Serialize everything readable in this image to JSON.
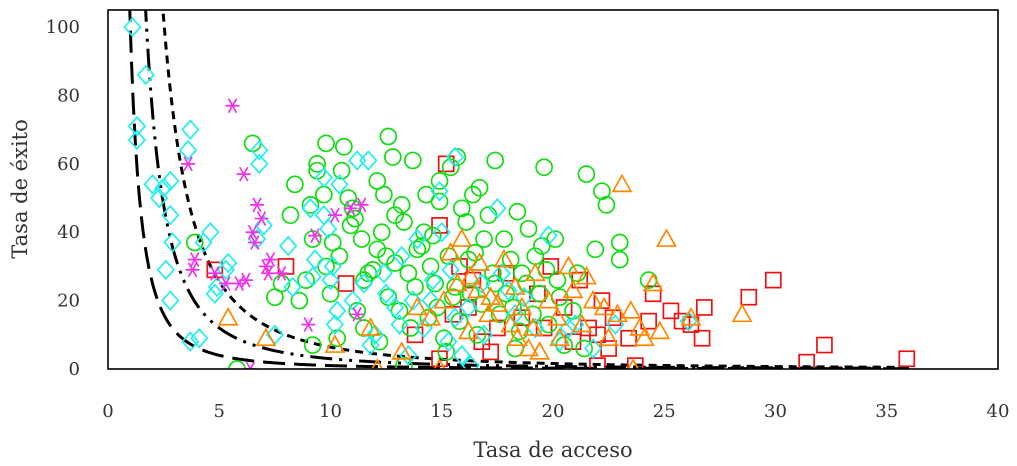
{
  "chart_data": {
    "type": "scatter",
    "title": "",
    "xlabel": "Tasa de acceso",
    "ylabel": "Tasa de éxito",
    "xlim": [
      0,
      40
    ],
    "ylim": [
      0,
      105
    ],
    "xticks": [
      0,
      5,
      10,
      15,
      20,
      25,
      30,
      35,
      40
    ],
    "yticks": [
      0,
      20,
      40,
      60,
      80,
      100
    ],
    "grid": false,
    "legend": "none",
    "curves": [
      {
        "style": "long-dash",
        "k": 100,
        "color": "#000000"
      },
      {
        "style": "dash-dot-dot",
        "k": 300,
        "color": "#000000"
      },
      {
        "style": "short-dash",
        "k": 640,
        "color": "#000000"
      }
    ],
    "series": [
      {
        "marker": "square",
        "color": "#ee1111",
        "points": [
          [
            4.8,
            29
          ],
          [
            8,
            30
          ],
          [
            10.7,
            25
          ],
          [
            15.2,
            60
          ],
          [
            14.9,
            42
          ],
          [
            16.2,
            18
          ],
          [
            15.8,
            30
          ],
          [
            16.8,
            8
          ],
          [
            17.2,
            5
          ],
          [
            19.3,
            22
          ],
          [
            20.5,
            18
          ],
          [
            21.6,
            12
          ],
          [
            22.2,
            20
          ],
          [
            22,
            10
          ],
          [
            22.5,
            6
          ],
          [
            22,
            1
          ],
          [
            23.7,
            1
          ],
          [
            24.5,
            22
          ],
          [
            25.3,
            17
          ],
          [
            25.8,
            14
          ],
          [
            26.8,
            18
          ],
          [
            26.7,
            9
          ],
          [
            28.8,
            21
          ],
          [
            29.9,
            26
          ],
          [
            31.4,
            2
          ],
          [
            32.2,
            7
          ],
          [
            35.9,
            3
          ],
          [
            17.9,
            28
          ],
          [
            18.6,
            15
          ],
          [
            19.9,
            30
          ],
          [
            20.9,
            8
          ],
          [
            14.9,
            3
          ],
          [
            23.4,
            9
          ],
          [
            24.3,
            14
          ],
          [
            26.2,
            13
          ],
          [
            21.2,
            26
          ],
          [
            19.6,
            12
          ],
          [
            17.5,
            12
          ],
          [
            15.5,
            16
          ],
          [
            16.4,
            26
          ],
          [
            13.8,
            10
          ],
          [
            22.7,
            15
          ]
        ]
      },
      {
        "marker": "circle",
        "color": "#11dd11",
        "points": [
          [
            3.9,
            37
          ],
          [
            5.8,
            0
          ],
          [
            6.5,
            66
          ],
          [
            7.5,
            21
          ],
          [
            8.2,
            45
          ],
          [
            8.4,
            54
          ],
          [
            9.2,
            38
          ],
          [
            9.4,
            58
          ],
          [
            9.7,
            51
          ],
          [
            9.8,
            66
          ],
          [
            10.1,
            37
          ],
          [
            10.6,
            65
          ],
          [
            11,
            47
          ],
          [
            11.1,
            44
          ],
          [
            11.5,
            26
          ],
          [
            12.3,
            40
          ],
          [
            12.6,
            68
          ],
          [
            12.8,
            62
          ],
          [
            13.3,
            43
          ],
          [
            13.7,
            61
          ],
          [
            14.3,
            51
          ],
          [
            14.9,
            49
          ],
          [
            15.4,
            59
          ],
          [
            15.7,
            62
          ],
          [
            16.4,
            51
          ],
          [
            16.7,
            53
          ],
          [
            17.4,
            61
          ],
          [
            18.4,
            46
          ],
          [
            18.9,
            41
          ],
          [
            19.6,
            59
          ],
          [
            20.1,
            38
          ],
          [
            21.5,
            57
          ],
          [
            21.9,
            35
          ],
          [
            22.2,
            52
          ],
          [
            22.4,
            48
          ],
          [
            23,
            37
          ],
          [
            23,
            32
          ],
          [
            24.3,
            26
          ],
          [
            8.6,
            20
          ],
          [
            9.2,
            7
          ],
          [
            10.3,
            9
          ],
          [
            11.5,
            12
          ],
          [
            12.1,
            35
          ],
          [
            12.9,
            31
          ],
          [
            13.5,
            28
          ],
          [
            13.3,
            1
          ],
          [
            14.1,
            36
          ],
          [
            14.7,
            25
          ],
          [
            14.8,
            18
          ],
          [
            15.1,
            9
          ],
          [
            15.5,
            21
          ],
          [
            16.2,
            32
          ],
          [
            16.9,
            38
          ],
          [
            17.3,
            28
          ],
          [
            17.9,
            22
          ],
          [
            18.2,
            18
          ],
          [
            18.8,
            25
          ],
          [
            19.2,
            33
          ],
          [
            19.7,
            29
          ],
          [
            20.3,
            21
          ],
          [
            20.9,
            17
          ],
          [
            21.1,
            28
          ],
          [
            9.8,
            30
          ],
          [
            10.4,
            33
          ],
          [
            11.2,
            17
          ],
          [
            12.6,
            21
          ],
          [
            13.1,
            17
          ],
          [
            13.8,
            24
          ],
          [
            14.4,
            15
          ],
          [
            15.8,
            14
          ],
          [
            16.6,
            10
          ],
          [
            17.6,
            16
          ],
          [
            18.5,
            11
          ],
          [
            19.8,
            13
          ],
          [
            20.5,
            7
          ],
          [
            21.4,
            6
          ],
          [
            7.8,
            25
          ],
          [
            8.9,
            26
          ],
          [
            10,
            22
          ],
          [
            11.7,
            28
          ],
          [
            12.9,
            45
          ],
          [
            14.2,
            40
          ],
          [
            15.3,
            33
          ],
          [
            16.1,
            43
          ],
          [
            17.1,
            45
          ],
          [
            18.1,
            32
          ],
          [
            19.5,
            36
          ],
          [
            20.2,
            26
          ],
          [
            12.2,
            8
          ],
          [
            13.6,
            12
          ],
          [
            15.2,
            5
          ],
          [
            16.8,
            19
          ],
          [
            18.3,
            6
          ],
          [
            19.1,
            16
          ],
          [
            9.1,
            48
          ],
          [
            10.8,
            50
          ],
          [
            12.4,
            51
          ],
          [
            13.2,
            48
          ],
          [
            14.6,
            39
          ],
          [
            15.9,
            47
          ],
          [
            16.5,
            34
          ],
          [
            17.8,
            38
          ],
          [
            12.5,
            33
          ],
          [
            11.9,
            29
          ],
          [
            14.5,
            30
          ],
          [
            15.6,
            24
          ],
          [
            16.3,
            22
          ],
          [
            17.4,
            25
          ],
          [
            18.6,
            28
          ],
          [
            19.4,
            22
          ],
          [
            11.4,
            38
          ],
          [
            13.9,
            35
          ],
          [
            10.9,
            42
          ],
          [
            9.4,
            60
          ],
          [
            10.5,
            58
          ],
          [
            12.1,
            55
          ],
          [
            14.9,
            55
          ]
        ]
      },
      {
        "marker": "diamond",
        "color": "#22eeee",
        "points": [
          [
            1.1,
            100
          ],
          [
            1.7,
            86
          ],
          [
            1.3,
            71
          ],
          [
            1.3,
            67
          ],
          [
            2,
            54
          ],
          [
            2.5,
            53
          ],
          [
            2.8,
            55
          ],
          [
            2.3,
            50
          ],
          [
            2.8,
            45
          ],
          [
            2.9,
            37
          ],
          [
            2.6,
            29
          ],
          [
            2.8,
            20
          ],
          [
            3.6,
            64
          ],
          [
            3.7,
            70
          ],
          [
            3.7,
            8
          ],
          [
            4.1,
            9
          ],
          [
            4.6,
            40
          ],
          [
            4.3,
            37
          ],
          [
            4.9,
            24
          ],
          [
            5.3,
            29
          ],
          [
            5.4,
            31
          ],
          [
            4.8,
            22
          ],
          [
            6.8,
            60
          ],
          [
            6.8,
            64
          ],
          [
            6.7,
            38
          ],
          [
            7,
            42
          ],
          [
            7.5,
            10
          ],
          [
            8.1,
            36
          ],
          [
            8.3,
            24
          ],
          [
            9.1,
            47
          ],
          [
            9.2,
            27
          ],
          [
            9.7,
            56
          ],
          [
            9.7,
            45
          ],
          [
            9.9,
            41
          ],
          [
            10,
            26
          ],
          [
            10.1,
            30
          ],
          [
            10.3,
            17
          ],
          [
            10.4,
            54
          ],
          [
            11.2,
            61
          ],
          [
            11.7,
            61
          ],
          [
            11.5,
            25
          ],
          [
            12,
            10
          ],
          [
            12.5,
            22
          ],
          [
            12.9,
            18
          ],
          [
            13.2,
            33
          ],
          [
            13.5,
            4
          ],
          [
            13.9,
            38
          ],
          [
            14.5,
            20
          ],
          [
            14.9,
            52
          ],
          [
            15.6,
            62
          ],
          [
            15.4,
            29
          ],
          [
            15.6,
            15
          ],
          [
            15.9,
            4
          ],
          [
            16.3,
            1
          ],
          [
            16.8,
            25
          ],
          [
            17.5,
            47
          ],
          [
            18,
            23
          ],
          [
            18.3,
            16
          ],
          [
            19.8,
            39
          ],
          [
            20.3,
            8
          ],
          [
            21,
            13
          ],
          [
            21.8,
            6
          ],
          [
            22.8,
            13
          ],
          [
            26.1,
            14
          ],
          [
            9.3,
            32
          ],
          [
            10.2,
            13
          ],
          [
            11,
            20
          ],
          [
            12.4,
            28
          ],
          [
            13.7,
            20
          ],
          [
            14.2,
            12
          ],
          [
            15,
            40
          ],
          [
            16.2,
            18
          ],
          [
            16.9,
            10
          ],
          [
            17.7,
            28
          ],
          [
            18.7,
            21
          ],
          [
            19.2,
            12
          ],
          [
            20.7,
            12
          ],
          [
            14.6,
            26
          ],
          [
            13.1,
            13
          ],
          [
            11.8,
            7
          ],
          [
            15.3,
            8
          ]
        ]
      },
      {
        "marker": "triangle",
        "color": "#ff8800",
        "points": [
          [
            5.4,
            15
          ],
          [
            7.1,
            9
          ],
          [
            10.2,
            7
          ],
          [
            11.8,
            12
          ],
          [
            12.1,
            0
          ],
          [
            14.5,
            15
          ],
          [
            15.4,
            34
          ],
          [
            15.9,
            38
          ],
          [
            16.3,
            27
          ],
          [
            16.7,
            31
          ],
          [
            17.2,
            21
          ],
          [
            18.3,
            24
          ],
          [
            18.6,
            18
          ],
          [
            19.1,
            12
          ],
          [
            19.4,
            5
          ],
          [
            20.3,
            9
          ],
          [
            20.7,
            30
          ],
          [
            21.5,
            27
          ],
          [
            22.3,
            18
          ],
          [
            22.9,
            16
          ],
          [
            23.1,
            54
          ],
          [
            23.5,
            17
          ],
          [
            23.6,
            0
          ],
          [
            24.1,
            9
          ],
          [
            24.5,
            25
          ],
          [
            25.1,
            38
          ],
          [
            26.2,
            15
          ],
          [
            28.5,
            16
          ],
          [
            13.2,
            5
          ],
          [
            14.9,
            0
          ],
          [
            16.2,
            11
          ],
          [
            17.5,
            19
          ],
          [
            18.1,
            13
          ],
          [
            18.9,
            6
          ],
          [
            19.8,
            20
          ],
          [
            20.9,
            23
          ],
          [
            21.3,
            13
          ],
          [
            22.5,
            9
          ],
          [
            23.9,
            12
          ],
          [
            24.8,
            11
          ],
          [
            15.1,
            20
          ],
          [
            16.6,
            23
          ],
          [
            17.8,
            32
          ],
          [
            19.2,
            28
          ],
          [
            13.9,
            18
          ],
          [
            15.7,
            25
          ],
          [
            17.1,
            16
          ],
          [
            18.4,
            9
          ],
          [
            20.2,
            15
          ],
          [
            21.8,
            20
          ]
        ]
      },
      {
        "marker": "asterisk",
        "color": "#ee33ee",
        "points": [
          [
            3.6,
            60
          ],
          [
            3.9,
            32
          ],
          [
            3.8,
            29
          ],
          [
            4.8,
            28
          ],
          [
            5.3,
            25
          ],
          [
            5.6,
            77
          ],
          [
            5.9,
            25
          ],
          [
            6.1,
            57
          ],
          [
            6.2,
            26
          ],
          [
            6.4,
            0
          ],
          [
            6.5,
            40
          ],
          [
            6.7,
            48
          ],
          [
            6.9,
            44
          ],
          [
            7.2,
            28
          ],
          [
            7.1,
            30
          ],
          [
            7.8,
            28
          ],
          [
            9,
            13
          ],
          [
            9.3,
            39
          ],
          [
            10.2,
            45
          ],
          [
            10.9,
            47
          ],
          [
            11.2,
            16
          ],
          [
            11.4,
            48
          ],
          [
            6.6,
            37
          ],
          [
            7.3,
            32
          ]
        ]
      }
    ]
  }
}
